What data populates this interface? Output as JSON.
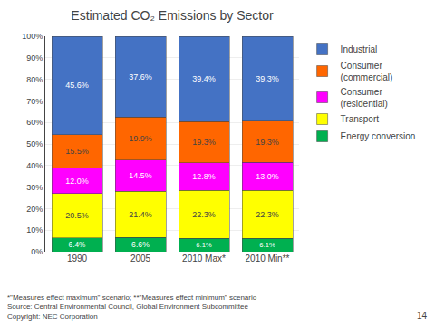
{
  "chart_data": {
    "type": "bar",
    "stacked": true,
    "title": "Estimated CO₂ Emissions by Sector",
    "categories": [
      "1990",
      "2005",
      "2010 Max*",
      "2010 Min**"
    ],
    "series": [
      {
        "name": "Energy conversion",
        "color": "#00b050",
        "values": [
          6.4,
          6.6,
          6.1,
          6.1
        ],
        "value_labels": [
          "6.4%",
          "6.6%",
          "6.1%",
          "6.1%"
        ]
      },
      {
        "name": "Transport",
        "color": "#ffff00",
        "values": [
          20.5,
          21.4,
          22.3,
          22.3
        ],
        "value_labels": [
          "20.5%",
          "21.4%",
          "22.3%",
          "22.3%"
        ]
      },
      {
        "name": "Consumer\n(residential)",
        "color": "#ff00ff",
        "values": [
          12.0,
          14.5,
          12.8,
          13.0
        ],
        "value_labels": [
          "12.0%",
          "14.5%",
          "12.8%",
          "13.0%"
        ]
      },
      {
        "name": "Consumer\n(commercial)",
        "color": "#ff6600",
        "values": [
          15.5,
          19.9,
          19.3,
          19.3
        ],
        "value_labels": [
          "15.5%",
          "19.9%",
          "19.3%",
          "19.3%"
        ]
      },
      {
        "name": "Industrial",
        "color": "#4472c4",
        "values": [
          45.6,
          37.6,
          39.4,
          39.3
        ],
        "value_labels": [
          "45.6%",
          "37.6%",
          "39.4%",
          "39.3%"
        ]
      }
    ],
    "data_labels": true,
    "ylim": [
      0,
      100
    ],
    "yticks": [
      {
        "value": 0,
        "label": "0%"
      },
      {
        "value": 10,
        "label": "10%"
      },
      {
        "value": 20,
        "label": "20%"
      },
      {
        "value": 30,
        "label": "30%"
      },
      {
        "value": 40,
        "label": "40%"
      },
      {
        "value": 50,
        "label": "50%"
      },
      {
        "value": 60,
        "label": "60%"
      },
      {
        "value": 70,
        "label": "70%"
      },
      {
        "value": 80,
        "label": "80%"
      },
      {
        "value": 90,
        "label": "90%"
      },
      {
        "value": 100,
        "label": "100%"
      }
    ],
    "grid": true,
    "legend": "right",
    "annotations": [
      "*\"Measures effect maximum\" scenario; **\"Measures effect minimum\" scenario\nSource: Central Environmental Council, Global Environment Subcommittee\nCopyright: NEC Corporation",
      "14"
    ]
  }
}
